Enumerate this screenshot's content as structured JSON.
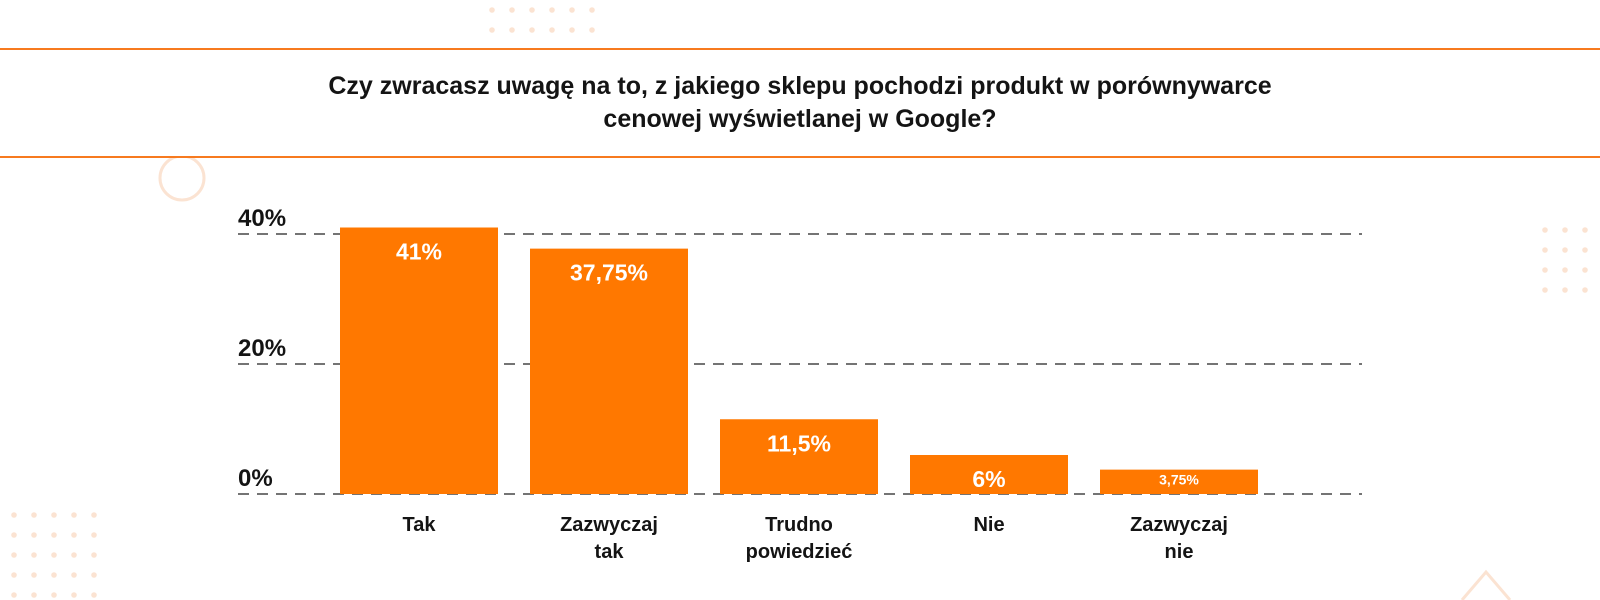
{
  "colors": {
    "accent": "#f77a1f",
    "bar": "#ff7800",
    "text": "#141414",
    "grid": "#222222"
  },
  "chart_data": {
    "type": "bar",
    "title_lines": [
      "Czy zwracasz uwagę na to, z jakiego sklepu pochodzi produkt w porównywarce",
      "cenowej wyświetlanej w Google?"
    ],
    "categories": [
      [
        "Tak"
      ],
      [
        "Zazwyczaj",
        "tak"
      ],
      [
        "Trudno",
        "powiedzieć"
      ],
      [
        "Nie"
      ],
      [
        "Zazwyczaj",
        "nie"
      ]
    ],
    "values": [
      41,
      37.75,
      11.5,
      6,
      3.75
    ],
    "value_labels": [
      "41%",
      "37,75%",
      "11,5%",
      "6%",
      "3,75%"
    ],
    "yticks": [
      0,
      20,
      40
    ],
    "ytick_labels": [
      "0%",
      "20%",
      "40%"
    ],
    "ylim": [
      0,
      40
    ],
    "grid": true,
    "grid_style": "dashed",
    "legend": "none"
  }
}
